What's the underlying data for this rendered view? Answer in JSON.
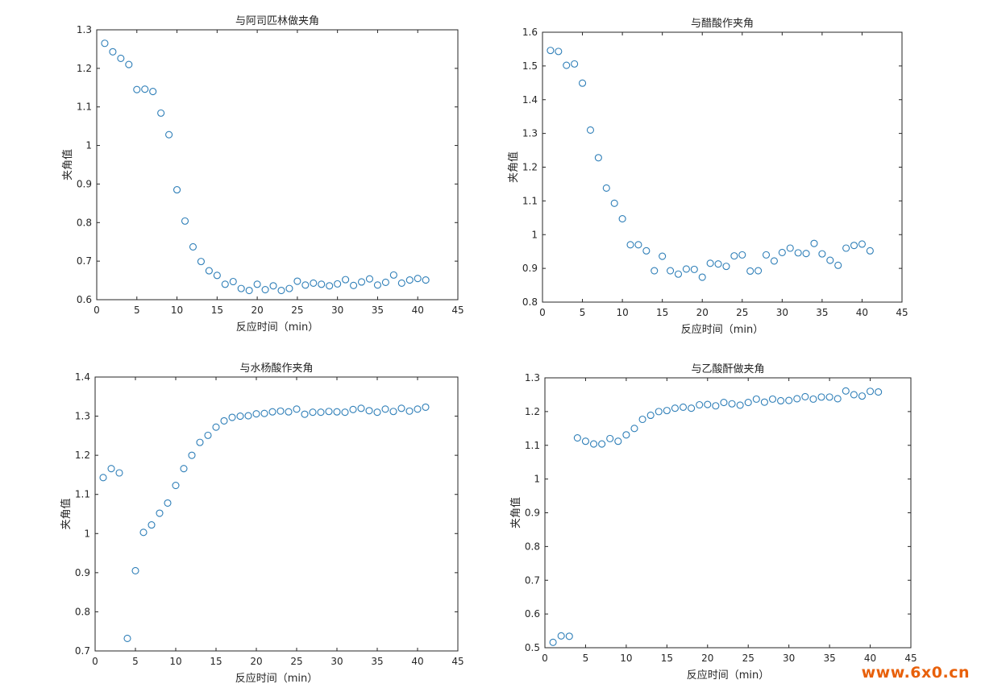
{
  "watermark": "www.6x0.cn",
  "colors": {
    "marker": "#2f7fb8",
    "axis": "#262626",
    "background": "#ffffff",
    "watermark": "#e8600a"
  },
  "chart_data": [
    {
      "type": "scatter",
      "title": "与阿司匹林做夹角",
      "xlabel": "反应时间（min）",
      "ylabel": "夹角值",
      "xlim": [
        0,
        45
      ],
      "ylim": [
        0.6,
        1.3
      ],
      "xticks": [
        0,
        5,
        10,
        15,
        20,
        25,
        30,
        35,
        40,
        45
      ],
      "yticks": [
        0.6,
        0.7,
        0.8,
        0.9,
        1,
        1.1,
        1.2,
        1.3
      ],
      "grid": false,
      "marker": "open-circle",
      "x": [
        1,
        2,
        3,
        4,
        5,
        6,
        7,
        8,
        9,
        10,
        11,
        12,
        13,
        14,
        15,
        16,
        17,
        18,
        19,
        20,
        21,
        22,
        23,
        24,
        25,
        26,
        27,
        28,
        29,
        30,
        31,
        32,
        33,
        34,
        35,
        36,
        37,
        38,
        39,
        40,
        41
      ],
      "y": [
        1.265,
        1.243,
        1.226,
        1.21,
        1.145,
        1.146,
        1.14,
        1.084,
        1.028,
        0.885,
        0.804,
        0.737,
        0.699,
        0.675,
        0.663,
        0.64,
        0.647,
        0.629,
        0.624,
        0.64,
        0.626,
        0.636,
        0.624,
        0.629,
        0.648,
        0.638,
        0.643,
        0.64,
        0.636,
        0.641,
        0.652,
        0.637,
        0.646,
        0.654,
        0.638,
        0.645,
        0.664,
        0.643,
        0.651,
        0.655,
        0.651
      ]
    },
    {
      "type": "scatter",
      "title": "与醋酸作夹角",
      "xlabel": "反应时间（min）",
      "ylabel": "夹角值",
      "xlim": [
        0,
        45
      ],
      "ylim": [
        0.8,
        1.6
      ],
      "xticks": [
        0,
        5,
        10,
        15,
        20,
        25,
        30,
        35,
        40,
        45
      ],
      "yticks": [
        0.8,
        0.9,
        1,
        1.1,
        1.2,
        1.3,
        1.4,
        1.5,
        1.6
      ],
      "grid": false,
      "marker": "open-circle",
      "x": [
        1,
        2,
        3,
        4,
        5,
        6,
        7,
        8,
        9,
        10,
        11,
        12,
        13,
        14,
        15,
        16,
        17,
        18,
        19,
        20,
        21,
        22,
        23,
        24,
        25,
        26,
        27,
        28,
        29,
        30,
        31,
        32,
        33,
        34,
        35,
        36,
        37,
        38,
        39,
        40,
        41
      ],
      "y": [
        1.546,
        1.543,
        1.502,
        1.506,
        1.449,
        1.31,
        1.228,
        1.138,
        1.093,
        1.047,
        0.97,
        0.97,
        0.952,
        0.893,
        0.936,
        0.893,
        0.883,
        0.898,
        0.897,
        0.874,
        0.915,
        0.913,
        0.906,
        0.937,
        0.94,
        0.892,
        0.893,
        0.94,
        0.922,
        0.947,
        0.96,
        0.946,
        0.944,
        0.974,
        0.943,
        0.924,
        0.909,
        0.96,
        0.968,
        0.972,
        0.952
      ]
    },
    {
      "type": "scatter",
      "title": "与水杨酸作夹角",
      "xlabel": "反应时间（min）",
      "ylabel": "夹角值",
      "xlim": [
        0,
        45
      ],
      "ylim": [
        0.7,
        1.4
      ],
      "xticks": [
        0,
        5,
        10,
        15,
        20,
        25,
        30,
        35,
        40,
        45
      ],
      "yticks": [
        0.7,
        0.8,
        0.9,
        1,
        1.1,
        1.2,
        1.3,
        1.4
      ],
      "grid": false,
      "marker": "open-circle",
      "x": [
        1,
        2,
        3,
        4,
        5,
        6,
        7,
        8,
        9,
        10,
        11,
        12,
        13,
        14,
        15,
        16,
        17,
        18,
        19,
        20,
        21,
        22,
        23,
        24,
        25,
        26,
        27,
        28,
        29,
        30,
        31,
        32,
        33,
        34,
        35,
        36,
        37,
        38,
        39,
        40,
        41
      ],
      "y": [
        1.143,
        1.166,
        1.155,
        0.732,
        0.905,
        1.003,
        1.022,
        1.052,
        1.078,
        1.123,
        1.166,
        1.2,
        1.233,
        1.251,
        1.272,
        1.288,
        1.297,
        1.3,
        1.301,
        1.306,
        1.307,
        1.311,
        1.313,
        1.311,
        1.318,
        1.305,
        1.31,
        1.31,
        1.312,
        1.311,
        1.31,
        1.317,
        1.32,
        1.314,
        1.31,
        1.318,
        1.312,
        1.32,
        1.313,
        1.318,
        1.323
      ]
    },
    {
      "type": "scatter",
      "title": "与乙酸酐做夹角",
      "xlabel": "反应时间（min）",
      "ylabel": "夹角值",
      "xlim": [
        0,
        45
      ],
      "ylim": [
        0.5,
        1.3
      ],
      "xticks": [
        0,
        5,
        10,
        15,
        20,
        25,
        30,
        35,
        40,
        45
      ],
      "yticks": [
        0.5,
        0.6,
        0.7,
        0.8,
        0.9,
        1,
        1.1,
        1.2,
        1.3
      ],
      "grid": false,
      "marker": "open-circle",
      "x": [
        1,
        2,
        3,
        4,
        5,
        6,
        7,
        8,
        9,
        10,
        11,
        12,
        13,
        14,
        15,
        16,
        17,
        18,
        19,
        20,
        21,
        22,
        23,
        24,
        25,
        26,
        27,
        28,
        29,
        30,
        31,
        32,
        33,
        34,
        35,
        36,
        37,
        38,
        39,
        40,
        41
      ],
      "y": [
        0.516,
        0.535,
        0.534,
        1.122,
        1.112,
        1.104,
        1.104,
        1.12,
        1.112,
        1.131,
        1.15,
        1.177,
        1.189,
        1.2,
        1.203,
        1.21,
        1.213,
        1.21,
        1.22,
        1.221,
        1.217,
        1.227,
        1.223,
        1.219,
        1.227,
        1.237,
        1.228,
        1.237,
        1.232,
        1.233,
        1.238,
        1.244,
        1.237,
        1.243,
        1.243,
        1.238,
        1.261,
        1.25,
        1.246,
        1.26,
        1.258
      ]
    }
  ]
}
